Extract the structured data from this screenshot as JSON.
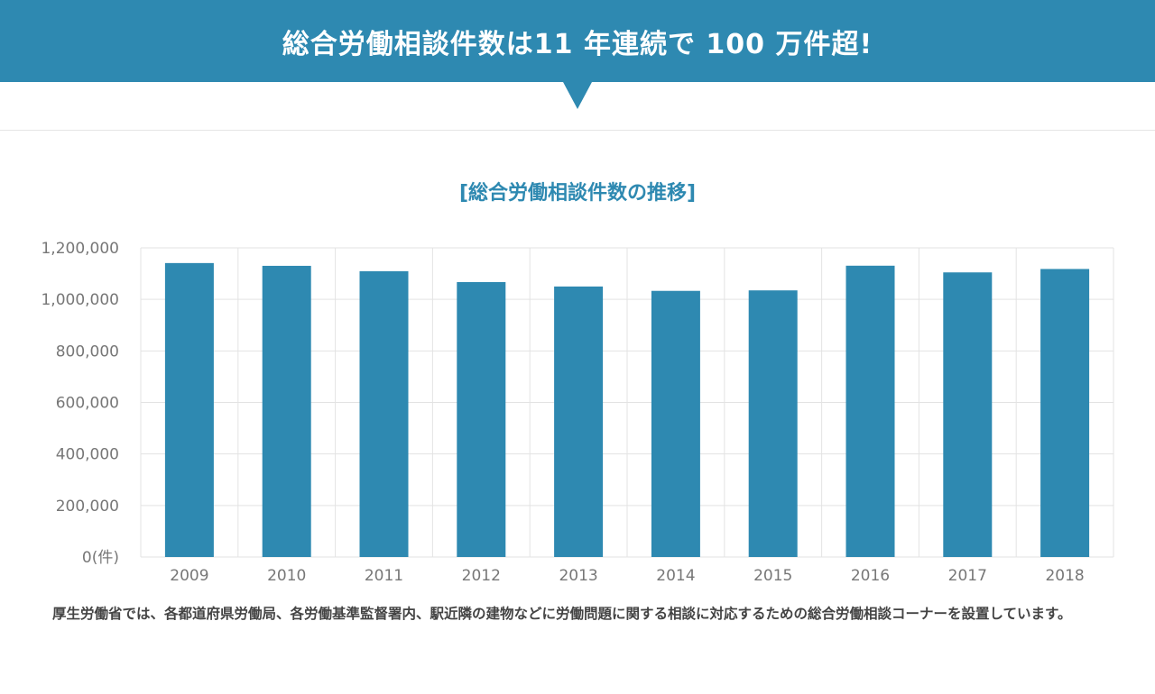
{
  "banner": {
    "title": "総合労働相談件数は11 年連続で 100 万件超!"
  },
  "chart_data": {
    "type": "bar",
    "title": "[総合労働相談件数の推移]",
    "categories": [
      "2009",
      "2010",
      "2011",
      "2012",
      "2013",
      "2014",
      "2015",
      "2016",
      "2017",
      "2018"
    ],
    "values": [
      1141006,
      1130234,
      1109454,
      1067210,
      1050042,
      1033047,
      1034936,
      1130741,
      1104758,
      1117983
    ],
    "ylim": [
      0,
      1200000
    ],
    "yticks": [
      0,
      200000,
      400000,
      600000,
      800000,
      1000000,
      1200000
    ],
    "ytick_labels": [
      "0(件)",
      "200,000",
      "400,000",
      "600,000",
      "800,000",
      "1,000,000",
      "1,200,000"
    ],
    "grid": true,
    "bar_color": "#2e89b1"
  },
  "note": {
    "text": "厚生労働省では、各都道府県労働局、各労働基準監督署内、駅近隣の建物などに労働問題に関する相談に対応するための総合労働相談コーナーを設置しています。"
  }
}
